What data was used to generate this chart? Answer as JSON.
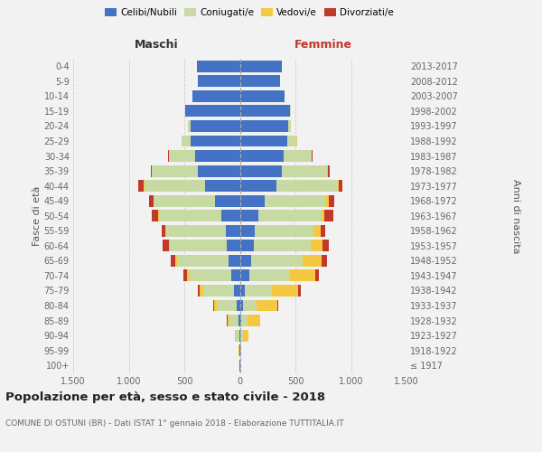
{
  "age_groups": [
    "100+",
    "95-99",
    "90-94",
    "85-89",
    "80-84",
    "75-79",
    "70-74",
    "65-69",
    "60-64",
    "55-59",
    "50-54",
    "45-49",
    "40-44",
    "35-39",
    "30-34",
    "25-29",
    "20-24",
    "15-19",
    "10-14",
    "5-9",
    "0-4"
  ],
  "birth_years": [
    "≤ 1917",
    "1918-1922",
    "1923-1927",
    "1928-1932",
    "1933-1937",
    "1938-1942",
    "1943-1947",
    "1948-1952",
    "1953-1957",
    "1958-1962",
    "1963-1967",
    "1968-1972",
    "1973-1977",
    "1978-1982",
    "1983-1987",
    "1988-1992",
    "1993-1997",
    "1998-2002",
    "2003-2007",
    "2008-2012",
    "2013-2017"
  ],
  "male": {
    "celibi": [
      2,
      4,
      8,
      15,
      25,
      50,
      75,
      100,
      120,
      130,
      165,
      220,
      310,
      380,
      400,
      440,
      445,
      490,
      430,
      375,
      385
    ],
    "coniugati": [
      0,
      4,
      25,
      80,
      180,
      280,
      380,
      465,
      510,
      530,
      565,
      555,
      550,
      410,
      240,
      85,
      25,
      0,
      0,
      0,
      0
    ],
    "vedovi": [
      0,
      4,
      10,
      18,
      28,
      28,
      18,
      18,
      12,
      8,
      4,
      4,
      4,
      0,
      0,
      0,
      0,
      0,
      0,
      0,
      0
    ],
    "divorziati": [
      0,
      0,
      0,
      4,
      8,
      18,
      32,
      42,
      50,
      38,
      60,
      38,
      48,
      8,
      4,
      0,
      0,
      0,
      0,
      0,
      0
    ]
  },
  "female": {
    "nubili": [
      2,
      4,
      8,
      15,
      25,
      48,
      85,
      105,
      125,
      135,
      170,
      225,
      330,
      375,
      395,
      425,
      435,
      455,
      405,
      365,
      375
    ],
    "coniugate": [
      0,
      4,
      18,
      55,
      125,
      240,
      370,
      460,
      510,
      530,
      565,
      555,
      550,
      410,
      250,
      85,
      25,
      4,
      0,
      0,
      0
    ],
    "vedove": [
      0,
      8,
      55,
      110,
      190,
      240,
      220,
      170,
      110,
      65,
      28,
      18,
      8,
      8,
      4,
      4,
      0,
      0,
      0,
      0,
      0
    ],
    "divorziate": [
      0,
      0,
      0,
      4,
      8,
      18,
      38,
      48,
      52,
      42,
      75,
      48,
      38,
      12,
      4,
      0,
      0,
      0,
      0,
      0,
      0
    ]
  },
  "colors": {
    "celibi": "#4472c4",
    "coniugati": "#c8daa4",
    "vedovi": "#f5c842",
    "divorziati": "#c0392b"
  },
  "title": "Popolazione per età, sesso e stato civile - 2018",
  "subtitle": "COMUNE DI OSTUNI (BR) - Dati ISTAT 1° gennaio 2018 - Elaborazione TUTTITALIA.IT",
  "xlabel_left": "Maschi",
  "xlabel_right": "Femmine",
  "ylabel_left": "Fasce di età",
  "ylabel_right": "Anni di nascita",
  "xlim": 1500,
  "bg_color": "#f2f2f2"
}
